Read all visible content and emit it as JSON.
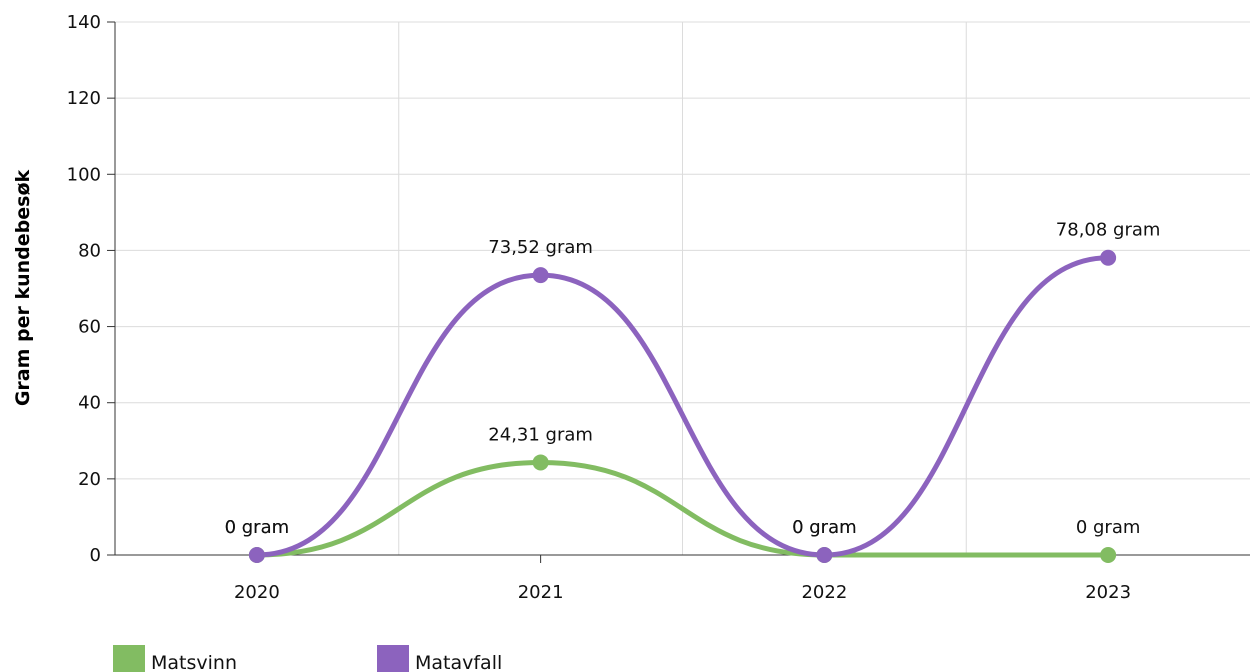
{
  "chart_data": {
    "type": "line",
    "title": "",
    "xlabel": "",
    "ylabel": "Gram per kundebesøk",
    "categories": [
      "2020",
      "2021",
      "2022",
      "2023"
    ],
    "y_ticks": [
      "0",
      "20",
      "40",
      "60",
      "80",
      "100",
      "120",
      "140"
    ],
    "ylim": [
      0,
      140
    ],
    "grid": true,
    "smooth": true,
    "legend_position": "bottom-left",
    "series": [
      {
        "name": "Matsvinn",
        "color": "#82bc62",
        "values": [
          0,
          24.31,
          0,
          0
        ],
        "labels": [
          "0 gram",
          "24,31 gram",
          "0 gram",
          "0 gram"
        ]
      },
      {
        "name": "Matavfall",
        "color": "#8c63be",
        "values": [
          0,
          73.52,
          0,
          78.08
        ],
        "labels": [
          "0 gram",
          "73,52 gram",
          "0 gram",
          "78,08 gram"
        ]
      }
    ]
  }
}
